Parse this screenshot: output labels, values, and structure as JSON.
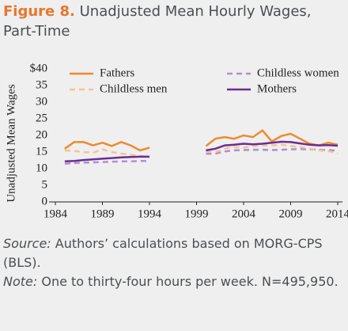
{
  "chart_data": {
    "type": "line",
    "figure_label": "Figure 8.",
    "title": "Unadjusted Mean Hourly Wages, Part-Time",
    "y_label": "Unadjusted Mean Wages",
    "x": [
      1985,
      1986,
      1987,
      1988,
      1989,
      1990,
      1991,
      1992,
      1993,
      1994,
      1995,
      1996,
      1997,
      1998,
      1999,
      2000,
      2001,
      2002,
      2003,
      2004,
      2005,
      2006,
      2007,
      2008,
      2009,
      2010,
      2011,
      2012,
      2013,
      2014
    ],
    "series": [
      {
        "name": "Fathers",
        "color": "#ef8a2e",
        "dash": false,
        "values": [
          16,
          18,
          18,
          17,
          17.8,
          16.8,
          18,
          17,
          15.5,
          16.3,
          null,
          null,
          null,
          null,
          null,
          16.8,
          19,
          19.5,
          19,
          20,
          19.5,
          21.5,
          18.2,
          19.8,
          20.5,
          19,
          17.5,
          17,
          17.8,
          17.2
        ]
      },
      {
        "name": "Childless women",
        "color": "#b08fd0",
        "dash": true,
        "values": [
          11.5,
          11.7,
          11.8,
          11.9,
          12,
          12.1,
          12.2,
          12.2,
          12.3,
          12.3,
          null,
          null,
          null,
          null,
          null,
          14.5,
          14.5,
          15.2,
          15.5,
          15.6,
          15.7,
          15.7,
          15.6,
          15.7,
          15.8,
          15.9,
          15.8,
          15.7,
          15.6,
          15.4
        ]
      },
      {
        "name": "Childless men",
        "color": "#f7c48e",
        "dash": true,
        "values": [
          15.5,
          15.3,
          15,
          14.8,
          15.8,
          15,
          14.5,
          14.2,
          13.8,
          13.6,
          null,
          null,
          null,
          null,
          null,
          15.2,
          15,
          16,
          16.5,
          16.3,
          16.8,
          17,
          17,
          17.2,
          16.8,
          16.5,
          16,
          15.5,
          15.3,
          14.5
        ]
      },
      {
        "name": "Mothers",
        "color": "#6b2d92",
        "dash": false,
        "values": [
          12.2,
          12.3,
          12.6,
          12.8,
          13,
          13.2,
          13.4,
          13.5,
          13.6,
          13.6,
          null,
          null,
          null,
          null,
          null,
          15.5,
          16,
          17,
          17.2,
          17.5,
          17.3,
          17.5,
          17.8,
          18.1,
          18,
          17.6,
          17.2,
          17,
          17.1,
          16.9
        ]
      }
    ],
    "xlim": [
      1984,
      2014
    ],
    "xticks": [
      1984,
      1989,
      1994,
      1999,
      2004,
      2009,
      2014
    ],
    "ylim": [
      0,
      40
    ],
    "yticks": [
      0,
      5,
      10,
      15,
      20,
      25,
      30,
      35,
      {
        "value": 40,
        "label": "$40"
      }
    ],
    "grid": false,
    "legend": "top",
    "source_label": "Source:",
    "source_text": "Authors’ calculations based on MORG-CPS (BLS).",
    "note_label": "Note:",
    "note_text": "One to thirty-four hours per week. N=495,950."
  }
}
